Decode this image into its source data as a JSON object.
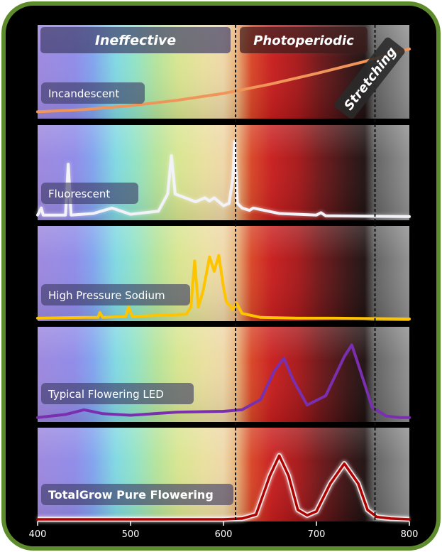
{
  "chart_data": {
    "type": "line",
    "title": "",
    "xlabel": "",
    "ylabel": "",
    "x_range": [
      400,
      800
    ],
    "x_ticks": [
      "400",
      "500",
      "600",
      "700",
      "800"
    ],
    "dividers_nm": [
      613,
      763
    ],
    "regions": [
      {
        "label": "Ineffective",
        "from": 400,
        "to": 613
      },
      {
        "label": "Photoperiodic",
        "from": 613,
        "to": 763
      },
      {
        "label": "Stretching",
        "from": 763,
        "to": 800
      }
    ],
    "panels": [
      {
        "name": "Incandescent",
        "color": "#f0955a",
        "x": [
          400,
          450,
          500,
          550,
          600,
          650,
          700,
          750,
          800
        ],
        "y": [
          0.07,
          0.1,
          0.15,
          0.22,
          0.31,
          0.43,
          0.57,
          0.72,
          0.89
        ]
      },
      {
        "name": "Fluorescent",
        "color": "#f2f2f8",
        "x": [
          400,
          404,
          406,
          430,
          433,
          436,
          460,
          480,
          500,
          530,
          540,
          544,
          548,
          570,
          580,
          585,
          590,
          600,
          606,
          610,
          612,
          615,
          620,
          628,
          632,
          660,
          700,
          705,
          710,
          800
        ],
        "y": [
          0.03,
          0.12,
          0.03,
          0.03,
          0.68,
          0.03,
          0.05,
          0.12,
          0.04,
          0.08,
          0.3,
          0.79,
          0.3,
          0.2,
          0.25,
          0.21,
          0.25,
          0.15,
          0.18,
          0.5,
          0.97,
          0.18,
          0.12,
          0.09,
          0.12,
          0.05,
          0.03,
          0.06,
          0.02,
          0.01
        ]
      },
      {
        "name": "High Pressure Sodium",
        "color": "#ffc400",
        "x": [
          400,
          450,
          465,
          467,
          470,
          495,
          498,
          502,
          520,
          560,
          565,
          569,
          573,
          578,
          585,
          590,
          595,
          600,
          603,
          610,
          614,
          620,
          640,
          680,
          720,
          800
        ],
        "y": [
          0.01,
          0.02,
          0.02,
          0.08,
          0.02,
          0.03,
          0.15,
          0.03,
          0.04,
          0.06,
          0.15,
          0.73,
          0.15,
          0.35,
          0.78,
          0.6,
          0.8,
          0.4,
          0.22,
          0.12,
          0.2,
          0.07,
          0.02,
          0.01,
          0.01,
          0.0
        ]
      },
      {
        "name": "Typical Flowering LED",
        "color": "#7a2fb0",
        "x": [
          400,
          430,
          450,
          470,
          500,
          550,
          600,
          620,
          640,
          655,
          665,
          675,
          690,
          710,
          730,
          738,
          745,
          760,
          775,
          790,
          800
        ],
        "y": [
          0.02,
          0.06,
          0.12,
          0.07,
          0.05,
          0.09,
          0.1,
          0.12,
          0.25,
          0.62,
          0.78,
          0.5,
          0.18,
          0.3,
          0.8,
          0.95,
          0.7,
          0.15,
          0.04,
          0.02,
          0.02
        ]
      },
      {
        "name": "TotalGrow Pure Flowering",
        "color": "#b00000",
        "x": [
          400,
          600,
          620,
          635,
          650,
          660,
          670,
          680,
          690,
          700,
          715,
          730,
          745,
          755,
          765,
          780,
          800
        ],
        "y": [
          0.0,
          0.0,
          0.01,
          0.06,
          0.55,
          0.8,
          0.55,
          0.12,
          0.05,
          0.1,
          0.45,
          0.7,
          0.45,
          0.12,
          0.03,
          0.01,
          0.0
        ]
      }
    ]
  }
}
